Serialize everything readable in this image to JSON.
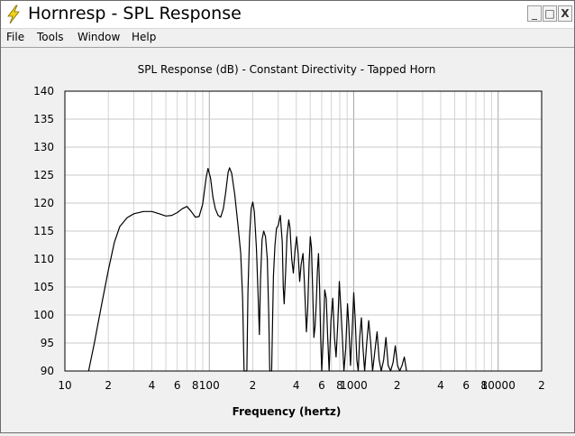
{
  "window": {
    "title": "Hornresp - SPL Response",
    "app_icon": "lightning-icon",
    "controls": {
      "minimize": "_",
      "maximize": "□",
      "close": "X"
    }
  },
  "menu": {
    "items": [
      "File",
      "Tools",
      "Window",
      "Help"
    ]
  },
  "chart_data": {
    "type": "line",
    "title": "SPL Response (dB) - Constant Directivity - Tapped Horn",
    "xlabel": "Frequency (hertz)",
    "ylabel": "",
    "x_scale": "log",
    "xlim": [
      10,
      20000
    ],
    "ylim": [
      90,
      140
    ],
    "grid": true,
    "x_tick_labels": [
      {
        "x": 10,
        "label": "10"
      },
      {
        "x": 20,
        "label": "2"
      },
      {
        "x": 40,
        "label": "4"
      },
      {
        "x": 60,
        "label": "6"
      },
      {
        "x": 80,
        "label": "8"
      },
      {
        "x": 100,
        "label": "100"
      },
      {
        "x": 200,
        "label": "2"
      },
      {
        "x": 400,
        "label": "4"
      },
      {
        "x": 600,
        "label": "6"
      },
      {
        "x": 800,
        "label": "8"
      },
      {
        "x": 1000,
        "label": "1000"
      },
      {
        "x": 2000,
        "label": "2"
      },
      {
        "x": 4000,
        "label": "4"
      },
      {
        "x": 6000,
        "label": "6"
      },
      {
        "x": 8000,
        "label": "8"
      },
      {
        "x": 10000,
        "label": "10000"
      },
      {
        "x": 20000,
        "label": "2"
      }
    ],
    "y_ticks": [
      90,
      95,
      100,
      105,
      110,
      115,
      120,
      125,
      130,
      135,
      140
    ],
    "series": [
      {
        "color": "#000000",
        "points": [
          [
            14.6,
            90
          ],
          [
            16,
            95
          ],
          [
            18,
            102
          ],
          [
            20,
            108
          ],
          [
            22,
            113
          ],
          [
            24,
            115.8
          ],
          [
            27,
            117.4
          ],
          [
            30,
            118.1
          ],
          [
            35,
            118.5
          ],
          [
            40,
            118.5
          ],
          [
            45,
            118.1
          ],
          [
            50,
            117.7
          ],
          [
            55,
            117.8
          ],
          [
            60,
            118.3
          ],
          [
            65,
            119.0
          ],
          [
            70,
            119.4
          ],
          [
            75,
            118.5
          ],
          [
            80,
            117.5
          ],
          [
            85,
            117.6
          ],
          [
            90,
            119.8
          ],
          [
            95,
            124.5
          ],
          [
            98,
            126.2
          ],
          [
            102,
            124.5
          ],
          [
            106,
            121.0
          ],
          [
            110,
            119.0
          ],
          [
            115,
            117.8
          ],
          [
            120,
            117.5
          ],
          [
            125,
            119.0
          ],
          [
            130,
            122.0
          ],
          [
            135,
            125.5
          ],
          [
            138,
            126.3
          ],
          [
            143,
            125.3
          ],
          [
            150,
            121.5
          ],
          [
            158,
            116.0
          ],
          [
            165,
            111.0
          ],
          [
            170,
            103.0
          ],
          [
            174,
            90
          ],
          [
            182,
            90
          ],
          [
            185,
            104.0
          ],
          [
            190,
            114.0
          ],
          [
            195,
            119.0
          ],
          [
            200,
            120.2
          ],
          [
            205,
            118.5
          ],
          [
            212,
            112.0
          ],
          [
            218,
            103.0
          ],
          [
            222,
            96.5
          ],
          [
            226,
            106.0
          ],
          [
            232,
            113.5
          ],
          [
            238,
            115.0
          ],
          [
            245,
            114.0
          ],
          [
            252,
            110.0
          ],
          [
            258,
            100.0
          ],
          [
            262,
            90
          ],
          [
            270,
            90
          ],
          [
            278,
            107.0
          ],
          [
            285,
            112.5
          ],
          [
            292,
            115.5
          ],
          [
            300,
            116.0
          ],
          [
            310,
            117.8
          ],
          [
            320,
            113.0
          ],
          [
            325,
            105.0
          ],
          [
            330,
            102.0
          ],
          [
            338,
            108.0
          ],
          [
            345,
            114.0
          ],
          [
            355,
            117.0
          ],
          [
            362,
            115.5
          ],
          [
            372,
            110.0
          ],
          [
            382,
            107.5
          ],
          [
            392,
            111.5
          ],
          [
            402,
            114.0
          ],
          [
            412,
            111.0
          ],
          [
            422,
            106.0
          ],
          [
            432,
            109.0
          ],
          [
            445,
            111.0
          ],
          [
            455,
            106.0
          ],
          [
            470,
            97.0
          ],
          [
            480,
            101.0
          ],
          [
            490,
            109.0
          ],
          [
            500,
            114.0
          ],
          [
            510,
            112.0
          ],
          [
            520,
            104.0
          ],
          [
            530,
            96.0
          ],
          [
            540,
            98.0
          ],
          [
            550,
            102.0
          ],
          [
            560,
            108.0
          ],
          [
            570,
            111.0
          ],
          [
            580,
            105.0
          ],
          [
            590,
            96.0
          ],
          [
            600,
            90
          ],
          [
            615,
            96.0
          ],
          [
            630,
            104.5
          ],
          [
            645,
            103.0
          ],
          [
            660,
            96.0
          ],
          [
            675,
            90
          ],
          [
            695,
            99.0
          ],
          [
            715,
            103.0
          ],
          [
            735,
            96.0
          ],
          [
            755,
            92.5
          ],
          [
            775,
            98.5
          ],
          [
            795,
            106.0
          ],
          [
            815,
            101.0
          ],
          [
            835,
            95.5
          ],
          [
            855,
            90
          ],
          [
            880,
            94.0
          ],
          [
            905,
            102.0
          ],
          [
            925,
            98.0
          ],
          [
            950,
            91.0
          ],
          [
            975,
            97.0
          ],
          [
            1000,
            104.0
          ],
          [
            1025,
            99.0
          ],
          [
            1050,
            92.0
          ],
          [
            1075,
            90
          ],
          [
            1100,
            96.0
          ],
          [
            1130,
            99.5
          ],
          [
            1160,
            94.0
          ],
          [
            1190,
            90
          ],
          [
            1230,
            95.0
          ],
          [
            1270,
            99.0
          ],
          [
            1310,
            95.0
          ],
          [
            1350,
            90
          ],
          [
            1400,
            93.5
          ],
          [
            1450,
            97.0
          ],
          [
            1500,
            92.0
          ],
          [
            1550,
            90
          ],
          [
            1610,
            92.0
          ],
          [
            1670,
            96.0
          ],
          [
            1730,
            91.0
          ],
          [
            1800,
            90
          ],
          [
            1870,
            91.5
          ],
          [
            1940,
            94.5
          ],
          [
            2010,
            91.0
          ],
          [
            2080,
            90
          ],
          [
            2160,
            91.0
          ],
          [
            2240,
            92.5
          ],
          [
            2320,
            90
          ]
        ]
      }
    ]
  }
}
